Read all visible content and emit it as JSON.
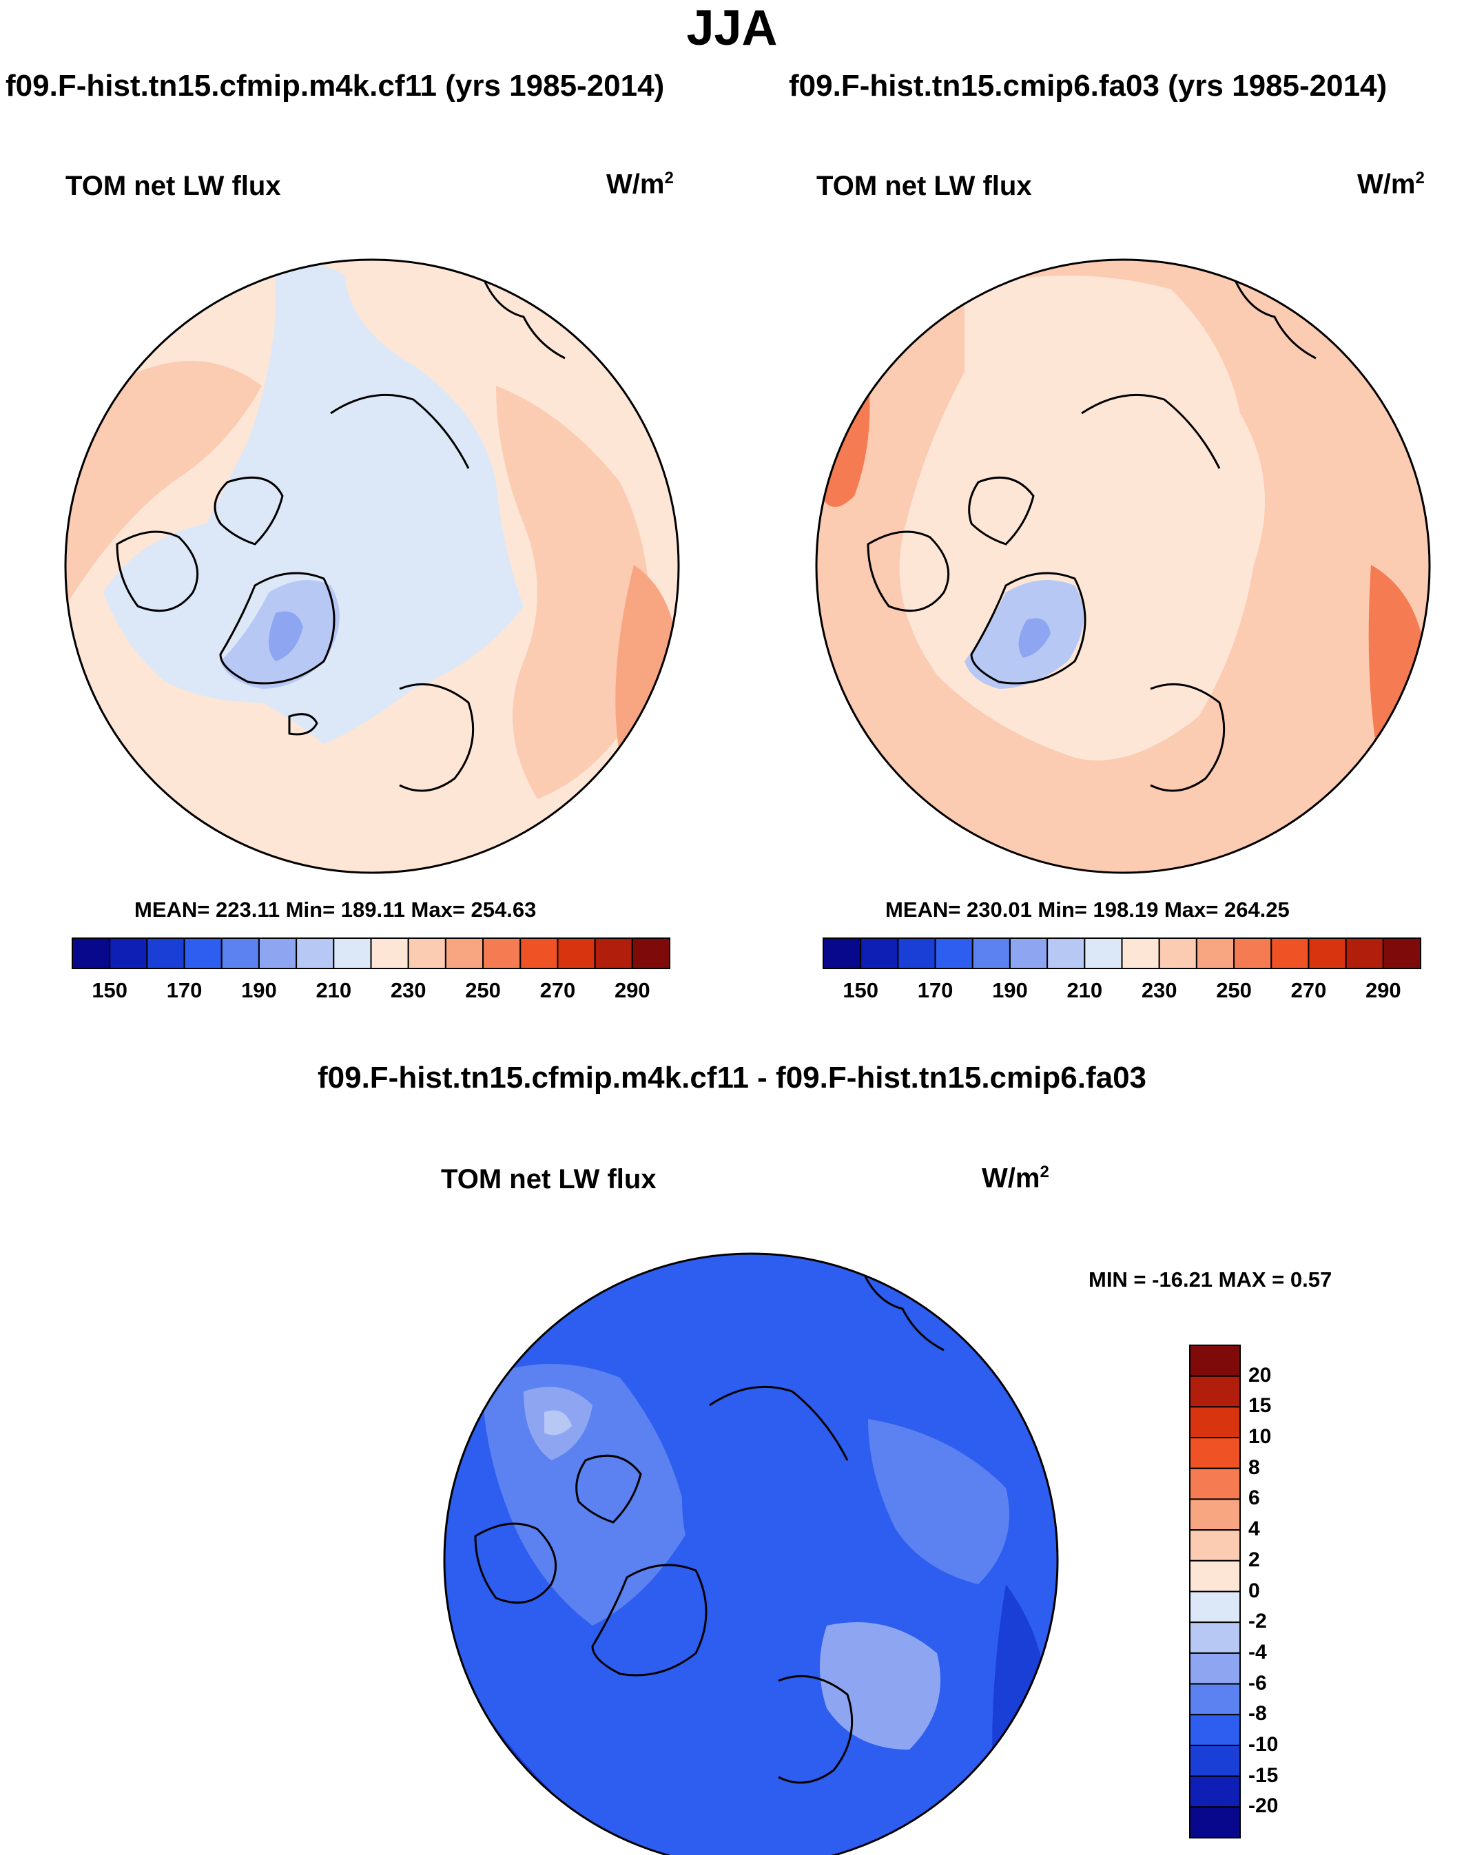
{
  "title": "JJA",
  "panels": [
    {
      "id": "left",
      "case_title": "f09.F-hist.tn15.cfmip.m4k.cf11 (yrs 1985-2014)",
      "variable": "TOM net LW flux",
      "units_base": "W/m",
      "units_exp": "2",
      "stats": "MEAN= 223.11  Min= 189.11  Max= 254.63"
    },
    {
      "id": "right",
      "case_title": "f09.F-hist.tn15.cmip6.fa03 (yrs 1985-2014)",
      "variable": "TOM net LW flux",
      "units_base": "W/m",
      "units_exp": "2",
      "stats": "MEAN= 230.01  Min= 198.19  Max= 264.25"
    }
  ],
  "diff_panel": {
    "title": "f09.F-hist.tn15.cfmip.m4k.cf11 - f09.F-hist.tn15.cmip6.fa03",
    "variable": "TOM net LW flux",
    "units_base": "W/m",
    "units_exp": "2",
    "stats": "MIN = -16.21 MAX =   0.57"
  },
  "colorbar_main": {
    "labels": [
      "150",
      "170",
      "190",
      "210",
      "230",
      "250",
      "270",
      "290"
    ],
    "colors": [
      "#08088c",
      "#0d1fb4",
      "#1a3fd6",
      "#2e5ef0",
      "#5b82f0",
      "#8ea6f2",
      "#b8c8f4",
      "#dce8f8",
      "#fde6d6",
      "#fbcbb2",
      "#f8a582",
      "#f57c52",
      "#ef5224",
      "#d93410",
      "#b21e0c",
      "#7e0a0a"
    ]
  },
  "colorbar_diff": {
    "labels": [
      "20",
      "15",
      "10",
      "8",
      "6",
      "4",
      "2",
      "0",
      "-2",
      "-4",
      "-6",
      "-8",
      "-10",
      "-15",
      "-20"
    ],
    "colors": [
      "#7e0a0a",
      "#b21e0c",
      "#d93410",
      "#ef5224",
      "#f57c52",
      "#f8a582",
      "#fbcbb2",
      "#fde6d6",
      "#dce8f8",
      "#b8c8f4",
      "#8ea6f2",
      "#5b82f0",
      "#2e5ef0",
      "#1a3fd6",
      "#0d1fb4",
      "#08088c"
    ]
  }
}
